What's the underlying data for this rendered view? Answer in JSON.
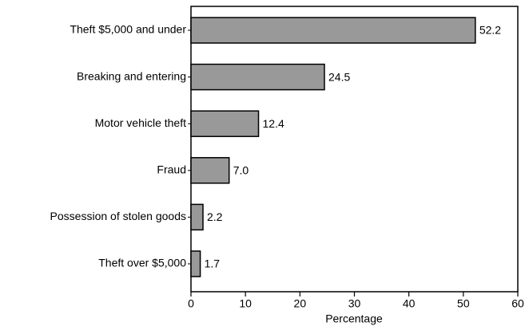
{
  "chart_data": {
    "type": "bar",
    "orientation": "horizontal",
    "categories": [
      "Theft $5,000 and under",
      "Breaking and entering",
      "Motor vehicle theft",
      "Fraud",
      "Possession of stolen goods",
      "Theft over $5,000"
    ],
    "values": [
      52.2,
      24.5,
      12.4,
      7.0,
      2.2,
      1.7
    ],
    "value_labels": [
      "52.2",
      "24.5",
      "12.4",
      "7.0",
      "2.2",
      "1.7"
    ],
    "color": "#999999",
    "xlabel": "Percentage",
    "xlim": [
      0,
      60
    ],
    "xticks": [
      0,
      10,
      20,
      30,
      40,
      50,
      60
    ],
    "grid": false
  }
}
